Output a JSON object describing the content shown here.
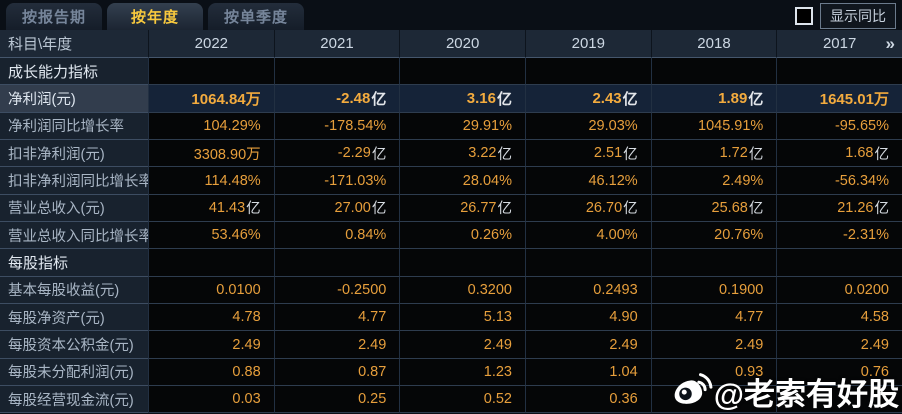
{
  "tabs": [
    {
      "label": "按报告期",
      "active": false
    },
    {
      "label": "按年度",
      "active": true
    },
    {
      "label": "按单季度",
      "active": false
    }
  ],
  "controls": {
    "show_yoy_label": "显示同比",
    "checkbox_checked": false
  },
  "table": {
    "corner_label": "科目\\年度",
    "years": [
      "2022",
      "2021",
      "2020",
      "2019",
      "2018",
      "2017"
    ],
    "more_icon": "»",
    "rows": [
      {
        "label": "成长能力指标",
        "type": "section",
        "values": [
          "",
          "",
          "",
          "",
          "",
          ""
        ]
      },
      {
        "label": "净利润(元)",
        "type": "highlight",
        "values": [
          "1064.84万",
          "-2.48亿",
          "3.16亿",
          "2.43亿",
          "1.89亿",
          "1645.01万"
        ]
      },
      {
        "label": "净利润同比增长率",
        "type": "normal",
        "values": [
          "104.29%",
          "-178.54%",
          "29.91%",
          "29.03%",
          "1045.91%",
          "-95.65%"
        ]
      },
      {
        "label": "扣非净利润(元)",
        "type": "normal",
        "values": [
          "3308.90万",
          "-2.29亿",
          "3.22亿",
          "2.51亿",
          "1.72亿",
          "1.68亿"
        ]
      },
      {
        "label": "扣非净利润同比增长率",
        "type": "normal",
        "values": [
          "114.48%",
          "-171.03%",
          "28.04%",
          "46.12%",
          "2.49%",
          "-56.34%"
        ]
      },
      {
        "label": "营业总收入(元)",
        "type": "normal",
        "values": [
          "41.43亿",
          "27.00亿",
          "26.77亿",
          "26.70亿",
          "25.68亿",
          "21.26亿"
        ]
      },
      {
        "label": "营业总收入同比增长率",
        "type": "normal",
        "values": [
          "53.46%",
          "0.84%",
          "0.26%",
          "4.00%",
          "20.76%",
          "-2.31%"
        ]
      },
      {
        "label": "每股指标",
        "type": "section",
        "values": [
          "",
          "",
          "",
          "",
          "",
          ""
        ]
      },
      {
        "label": "基本每股收益(元)",
        "type": "normal",
        "values": [
          "0.0100",
          "-0.2500",
          "0.3200",
          "0.2493",
          "0.1900",
          "0.0200"
        ]
      },
      {
        "label": "每股净资产(元)",
        "type": "normal",
        "values": [
          "4.78",
          "4.77",
          "5.13",
          "4.90",
          "4.77",
          "4.58"
        ]
      },
      {
        "label": "每股资本公积金(元)",
        "type": "normal",
        "values": [
          "2.49",
          "2.49",
          "2.49",
          "2.49",
          "2.49",
          "2.49"
        ]
      },
      {
        "label": "每股未分配利润(元)",
        "type": "normal",
        "values": [
          "0.88",
          "0.87",
          "1.23",
          "1.04",
          "0.93",
          "0.76"
        ]
      },
      {
        "label": "每股经营现金流(元)",
        "type": "normal",
        "values": [
          "0.03",
          "0.25",
          "0.52",
          "0.36",
          "",
          ""
        ]
      }
    ]
  },
  "watermark": {
    "handle": "@老索有好股",
    "icon": "weibo-logo"
  },
  "colors": {
    "accent_value": "#e79f3c",
    "active_tab_text": "#f8c93e",
    "header_bg": "#1d2836",
    "label_bg": "#18222e",
    "highlight_row_bg": "#152338"
  }
}
